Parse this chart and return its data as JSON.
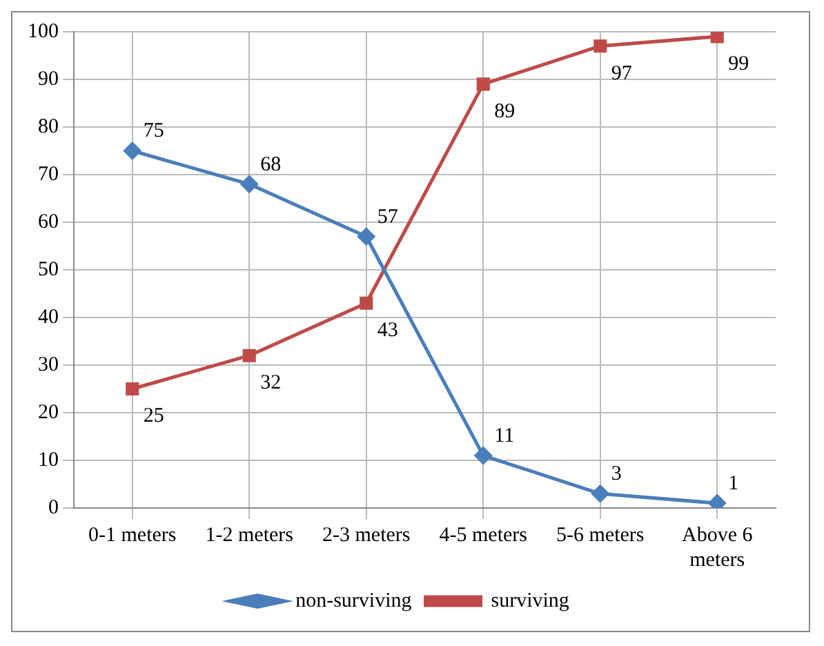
{
  "chart_data": {
    "type": "line",
    "categories": [
      "0-1 meters",
      "1-2 meters",
      "2-3 meters",
      "4-5 meters",
      "5-6 meters",
      "Above 6 meters"
    ],
    "series": [
      {
        "name": "non-surviving",
        "color": "#4a7ebb",
        "marker": "diamond",
        "values": [
          75,
          68,
          57,
          11,
          3,
          1
        ]
      },
      {
        "name": "surviving",
        "color": "#be4b48",
        "marker": "square",
        "values": [
          25,
          32,
          43,
          89,
          97,
          99
        ]
      }
    ],
    "ylim": [
      0,
      100
    ],
    "yticks": [
      0,
      10,
      20,
      30,
      40,
      50,
      60,
      70,
      80,
      90,
      100
    ],
    "grid": true,
    "legend": "bottom",
    "data_labels": true,
    "line_style": "solid"
  }
}
